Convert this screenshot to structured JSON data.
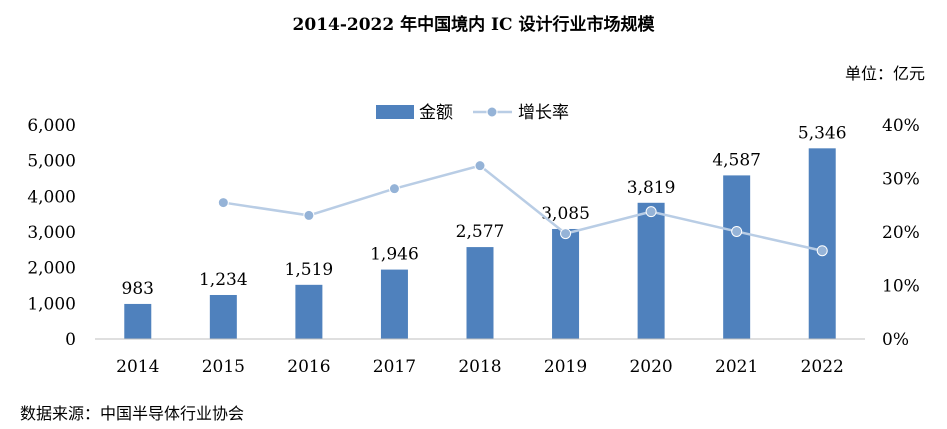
{
  "chart_data": {
    "type": "bar",
    "title": "2014-2022 年中国境内 IC 设计行业市场规模",
    "unit_label": "单位：亿元",
    "source": "数据来源：中国半导体行业协会",
    "categories": [
      "2014",
      "2015",
      "2016",
      "2017",
      "2018",
      "2019",
      "2020",
      "2021",
      "2022"
    ],
    "series": [
      {
        "name": "金额",
        "type": "bar",
        "axis": "left",
        "color": "#4f81bd",
        "values": [
          983,
          1234,
          1519,
          1946,
          2577,
          3085,
          3819,
          4587,
          5346
        ],
        "labels": [
          "983",
          "1,234",
          "1,519",
          "1,946",
          "2,577",
          "3,085",
          "3,819",
          "4,587",
          "5,346"
        ]
      },
      {
        "name": "增长率",
        "type": "line",
        "axis": "right",
        "color": "#b9cde5",
        "marker_color": "#95b3d7",
        "values": [
          null,
          25.5,
          23.1,
          28.1,
          32.4,
          19.7,
          23.8,
          20.1,
          16.5
        ]
      }
    ],
    "y_left": {
      "min": 0,
      "max": 6000,
      "ticks": [
        "0",
        "1,000",
        "2,000",
        "3,000",
        "4,000",
        "5,000",
        "6,000"
      ]
    },
    "y_right": {
      "min": 0,
      "max": 40,
      "ticks": [
        "0%",
        "10%",
        "20%",
        "30%",
        "40%"
      ]
    },
    "legend": "top-center",
    "grid": false
  }
}
